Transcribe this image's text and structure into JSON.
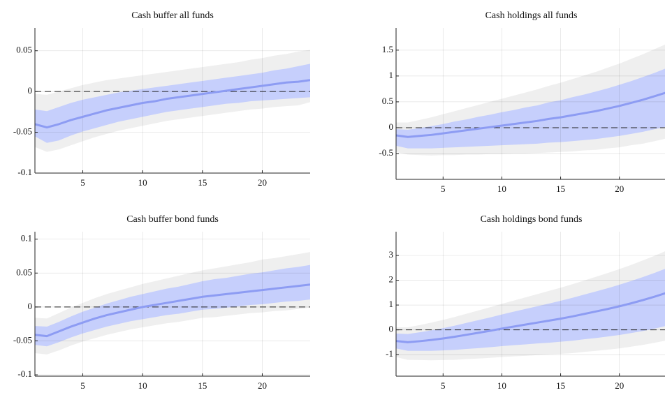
{
  "chart_data": [
    {
      "type": "line",
      "title": "Cash buffer all funds",
      "x": [
        1,
        2,
        3,
        4,
        5,
        6,
        7,
        8,
        9,
        10,
        11,
        12,
        13,
        14,
        15,
        16,
        17,
        18,
        19,
        20,
        21,
        22,
        23,
        24
      ],
      "xlim": [
        1,
        24
      ],
      "xticks": [
        5,
        10,
        15,
        20
      ],
      "ylim": [
        -0.1,
        0.078
      ],
      "yticks": [
        -0.1,
        -0.05,
        0,
        0.05
      ],
      "grid": true,
      "hline": 0,
      "bands": [
        {
          "color": "#efefef",
          "upper": [
            -0.003,
            -0.004,
            0.0,
            0.004,
            0.008,
            0.011,
            0.014,
            0.016,
            0.018,
            0.02,
            0.022,
            0.024,
            0.026,
            0.028,
            0.03,
            0.032,
            0.034,
            0.036,
            0.039,
            0.041,
            0.044,
            0.046,
            0.049,
            0.051
          ],
          "lower": [
            -0.068,
            -0.074,
            -0.071,
            -0.066,
            -0.061,
            -0.056,
            -0.052,
            -0.048,
            -0.045,
            -0.042,
            -0.039,
            -0.036,
            -0.034,
            -0.032,
            -0.03,
            -0.028,
            -0.026,
            -0.024,
            -0.022,
            -0.021,
            -0.019,
            -0.018,
            -0.017,
            -0.013
          ]
        },
        {
          "color": "#c6cffc",
          "upper": [
            -0.022,
            -0.024,
            -0.019,
            -0.014,
            -0.01,
            -0.007,
            -0.004,
            -0.001,
            0.001,
            0.003,
            0.005,
            0.007,
            0.009,
            0.011,
            0.013,
            0.015,
            0.017,
            0.019,
            0.021,
            0.023,
            0.026,
            0.028,
            0.031,
            0.034
          ],
          "lower": [
            -0.055,
            -0.063,
            -0.06,
            -0.054,
            -0.049,
            -0.045,
            -0.041,
            -0.037,
            -0.034,
            -0.031,
            -0.028,
            -0.025,
            -0.023,
            -0.021,
            -0.019,
            -0.017,
            -0.015,
            -0.014,
            -0.012,
            -0.011,
            -0.01,
            -0.009,
            -0.008,
            -0.007
          ]
        }
      ],
      "series": [
        {
          "color": "#8d9cf3",
          "values": [
            -0.04,
            -0.044,
            -0.04,
            -0.035,
            -0.031,
            -0.027,
            -0.023,
            -0.02,
            -0.017,
            -0.014,
            -0.012,
            -0.009,
            -0.007,
            -0.005,
            -0.003,
            -0.001,
            0.001,
            0.003,
            0.005,
            0.007,
            0.009,
            0.011,
            0.012,
            0.014
          ]
        }
      ]
    },
    {
      "type": "line",
      "title": "Cash holdings all funds",
      "x": [
        1,
        2,
        3,
        4,
        5,
        6,
        7,
        8,
        9,
        10,
        11,
        12,
        13,
        14,
        15,
        16,
        17,
        18,
        19,
        20,
        21,
        22,
        23,
        24
      ],
      "xlim": [
        1,
        24
      ],
      "xticks": [
        5,
        10,
        15,
        20
      ],
      "ylim": [
        -1.0,
        1.93
      ],
      "yticks": [
        -0.5,
        0,
        0.5,
        1,
        1.5
      ],
      "grid": true,
      "hline": 0,
      "bands": [
        {
          "color": "#efefef",
          "upper": [
            0.1,
            0.1,
            0.15,
            0.2,
            0.26,
            0.32,
            0.38,
            0.44,
            0.5,
            0.56,
            0.62,
            0.68,
            0.74,
            0.81,
            0.87,
            0.94,
            1.01,
            1.08,
            1.16,
            1.24,
            1.33,
            1.42,
            1.52,
            1.62
          ],
          "lower": [
            -0.47,
            -0.52,
            -0.53,
            -0.54,
            -0.53,
            -0.53,
            -0.52,
            -0.52,
            -0.51,
            -0.51,
            -0.5,
            -0.5,
            -0.49,
            -0.48,
            -0.47,
            -0.46,
            -0.44,
            -0.43,
            -0.4,
            -0.38,
            -0.34,
            -0.31,
            -0.26,
            -0.21
          ]
        },
        {
          "color": "#c6cffc",
          "upper": [
            -0.03,
            -0.04,
            -0.01,
            0.03,
            0.07,
            0.12,
            0.16,
            0.21,
            0.25,
            0.3,
            0.34,
            0.39,
            0.43,
            0.49,
            0.53,
            0.59,
            0.64,
            0.7,
            0.76,
            0.83,
            0.9,
            0.98,
            1.06,
            1.15
          ],
          "lower": [
            -0.35,
            -0.4,
            -0.4,
            -0.4,
            -0.39,
            -0.38,
            -0.37,
            -0.36,
            -0.35,
            -0.34,
            -0.33,
            -0.32,
            -0.31,
            -0.29,
            -0.28,
            -0.26,
            -0.24,
            -0.22,
            -0.19,
            -0.16,
            -0.12,
            -0.08,
            -0.03,
            0.02
          ]
        }
      ],
      "series": [
        {
          "color": "#8d9cf3",
          "values": [
            -0.15,
            -0.18,
            -0.16,
            -0.14,
            -0.11,
            -0.08,
            -0.05,
            -0.02,
            0.01,
            0.04,
            0.07,
            0.1,
            0.13,
            0.17,
            0.2,
            0.24,
            0.28,
            0.32,
            0.37,
            0.42,
            0.48,
            0.54,
            0.61,
            0.68
          ]
        }
      ]
    },
    {
      "type": "line",
      "title": "Cash buffer bond funds",
      "x": [
        1,
        2,
        3,
        4,
        5,
        6,
        7,
        8,
        9,
        10,
        11,
        12,
        13,
        14,
        15,
        16,
        17,
        18,
        19,
        20,
        21,
        22,
        23,
        24
      ],
      "xlim": [
        1,
        24
      ],
      "xticks": [
        5,
        10,
        15,
        20
      ],
      "ylim": [
        -0.102,
        0.111
      ],
      "yticks": [
        -0.1,
        -0.05,
        0,
        0.05,
        0.1
      ],
      "grid": true,
      "hline": 0,
      "bands": [
        {
          "color": "#efefef",
          "upper": [
            -0.016,
            -0.017,
            -0.009,
            -0.001,
            0.006,
            0.013,
            0.019,
            0.024,
            0.029,
            0.034,
            0.038,
            0.042,
            0.046,
            0.05,
            0.054,
            0.057,
            0.06,
            0.063,
            0.066,
            0.07,
            0.072,
            0.075,
            0.078,
            0.081
          ],
          "lower": [
            -0.068,
            -0.07,
            -0.064,
            -0.057,
            -0.051,
            -0.046,
            -0.041,
            -0.037,
            -0.033,
            -0.03,
            -0.027,
            -0.024,
            -0.022,
            -0.019,
            -0.016,
            -0.015,
            -0.013,
            -0.011,
            -0.009,
            -0.008,
            -0.006,
            -0.005,
            -0.003,
            -0.001
          ]
        },
        {
          "color": "#c6cffc",
          "upper": [
            -0.028,
            -0.029,
            -0.022,
            -0.014,
            -0.007,
            -0.001,
            0.005,
            0.01,
            0.015,
            0.019,
            0.023,
            0.027,
            0.03,
            0.034,
            0.038,
            0.041,
            0.043,
            0.046,
            0.049,
            0.051,
            0.054,
            0.057,
            0.059,
            0.062
          ],
          "lower": [
            -0.056,
            -0.058,
            -0.052,
            -0.045,
            -0.039,
            -0.034,
            -0.029,
            -0.025,
            -0.021,
            -0.018,
            -0.015,
            -0.012,
            -0.01,
            -0.007,
            -0.004,
            -0.003,
            -0.001,
            0.001,
            0.003,
            0.004,
            0.006,
            0.008,
            0.009,
            0.011
          ]
        }
      ],
      "series": [
        {
          "color": "#8d9cf3",
          "values": [
            -0.041,
            -0.043,
            -0.036,
            -0.029,
            -0.023,
            -0.017,
            -0.012,
            -0.008,
            -0.004,
            0.0,
            0.003,
            0.006,
            0.009,
            0.012,
            0.015,
            0.017,
            0.019,
            0.021,
            0.023,
            0.025,
            0.027,
            0.029,
            0.031,
            0.033
          ]
        }
      ]
    },
    {
      "type": "line",
      "title": "Cash holdings bond funds",
      "x": [
        1,
        2,
        3,
        4,
        5,
        6,
        7,
        8,
        9,
        10,
        11,
        12,
        13,
        14,
        15,
        16,
        17,
        18,
        19,
        20,
        21,
        22,
        23,
        24
      ],
      "xlim": [
        1,
        24
      ],
      "xticks": [
        5,
        10,
        15,
        20
      ],
      "ylim": [
        -1.87,
        3.96
      ],
      "yticks": [
        -1,
        0,
        1,
        2,
        3
      ],
      "grid": true,
      "hline": 0,
      "bands": [
        {
          "color": "#efefef",
          "upper": [
            0.1,
            0.1,
            0.19,
            0.29,
            0.4,
            0.52,
            0.65,
            0.78,
            0.91,
            1.05,
            1.18,
            1.31,
            1.44,
            1.57,
            1.7,
            1.84,
            1.99,
            2.14,
            2.29,
            2.45,
            2.62,
            2.8,
            2.99,
            3.19
          ],
          "lower": [
            -1.1,
            -1.21,
            -1.22,
            -1.23,
            -1.22,
            -1.21,
            -1.18,
            -1.16,
            -1.13,
            -1.1,
            -1.07,
            -1.05,
            -1.02,
            -0.99,
            -0.97,
            -0.94,
            -0.89,
            -0.85,
            -0.8,
            -0.75,
            -0.68,
            -0.61,
            -0.52,
            -0.43
          ]
        },
        {
          "color": "#c6cffc",
          "upper": [
            -0.15,
            -0.17,
            -0.1,
            -0.02,
            0.07,
            0.17,
            0.28,
            0.39,
            0.5,
            0.62,
            0.73,
            0.84,
            0.95,
            1.06,
            1.17,
            1.29,
            1.42,
            1.55,
            1.68,
            1.82,
            1.97,
            2.13,
            2.3,
            2.48
          ],
          "lower": [
            -0.75,
            -0.85,
            -0.85,
            -0.85,
            -0.83,
            -0.81,
            -0.77,
            -0.74,
            -0.7,
            -0.66,
            -0.62,
            -0.59,
            -0.55,
            -0.52,
            -0.48,
            -0.44,
            -0.38,
            -0.33,
            -0.27,
            -0.21,
            -0.13,
            -0.05,
            0.05,
            0.16
          ]
        }
      ],
      "series": [
        {
          "color": "#8d9cf3",
          "values": [
            -0.45,
            -0.5,
            -0.46,
            -0.41,
            -0.35,
            -0.28,
            -0.2,
            -0.12,
            -0.04,
            0.05,
            0.13,
            0.21,
            0.29,
            0.37,
            0.45,
            0.54,
            0.64,
            0.74,
            0.84,
            0.95,
            1.07,
            1.2,
            1.34,
            1.49
          ]
        }
      ]
    }
  ]
}
